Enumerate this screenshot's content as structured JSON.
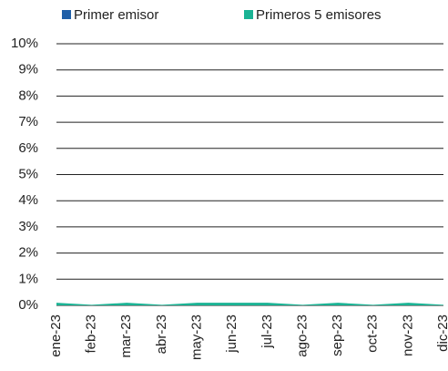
{
  "chart_data": {
    "type": "area",
    "categories": [
      "ene-23",
      "feb-23",
      "mar-23",
      "abr-23",
      "may-23",
      "jun-23",
      "jul-23",
      "ago-23",
      "sep-23",
      "oct-23",
      "nov-23",
      "dic-23"
    ],
    "series": [
      {
        "name": "Primer emisor",
        "color": "#1f5fa8",
        "values": [
          0,
          0,
          0,
          0,
          0,
          0,
          0,
          0,
          0,
          0,
          0,
          0
        ]
      },
      {
        "name": "Primeros 5 emisores",
        "color": "#1ab394",
        "values": [
          0.1,
          0.02,
          0.1,
          0.02,
          0.1,
          0.1,
          0.1,
          0.02,
          0.1,
          0.02,
          0.1,
          0.02
        ]
      }
    ],
    "ylim": [
      0,
      10
    ],
    "yticks": [
      {
        "value": 0,
        "label": "0%"
      },
      {
        "value": 1,
        "label": "1%"
      },
      {
        "value": 2,
        "label": "2%"
      },
      {
        "value": 3,
        "label": "3%"
      },
      {
        "value": 4,
        "label": "4%"
      },
      {
        "value": 5,
        "label": "5%"
      },
      {
        "value": 6,
        "label": "6%"
      },
      {
        "value": 7,
        "label": "7%"
      },
      {
        "value": 8,
        "label": "8%"
      },
      {
        "value": 9,
        "label": "9%"
      },
      {
        "value": 10,
        "label": "10%"
      }
    ],
    "grid": true
  }
}
